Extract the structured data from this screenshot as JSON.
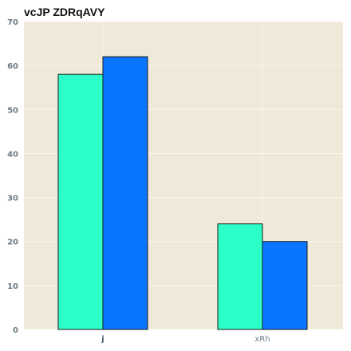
{
  "chart_data": {
    "type": "bar",
    "title": "vcJP ZDRqAVY",
    "xlabel": "",
    "ylabel": "",
    "categories": [
      "j",
      "xRh"
    ],
    "series": [
      {
        "values": [
          58,
          24
        ],
        "color": "#2cffc8"
      },
      {
        "values": [
          62,
          20
        ],
        "color": "#0a75ff"
      }
    ],
    "ylim": [
      0,
      70
    ],
    "yticks": [
      0,
      10,
      20,
      30,
      40,
      50,
      60,
      70
    ],
    "grid": true,
    "legend": "none",
    "background": "#efe9d9",
    "grid_color": "#fbf8f1"
  }
}
